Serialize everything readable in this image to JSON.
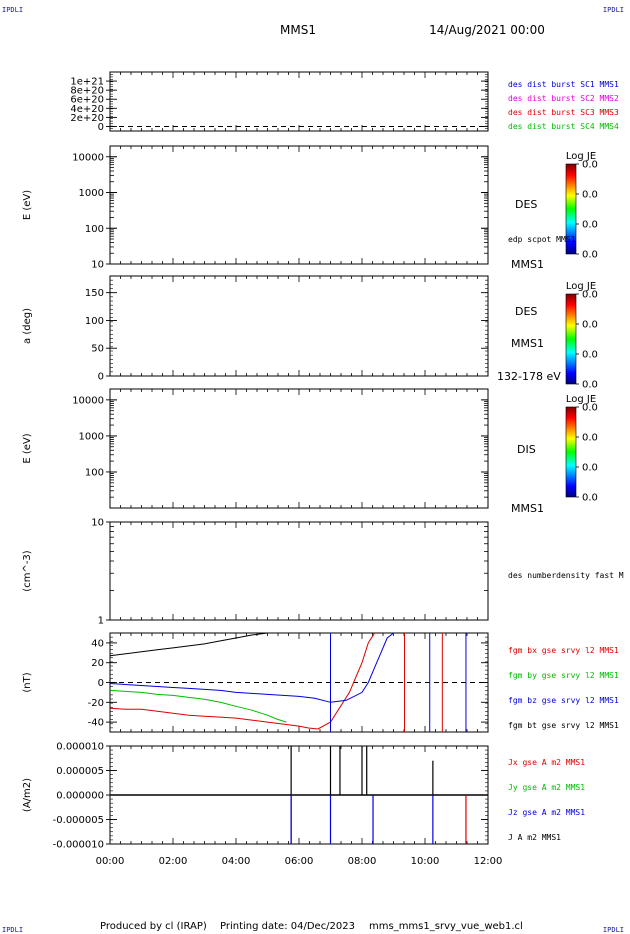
{
  "corners": {
    "top_left": "IPDLI",
    "top_right": "IPDLI",
    "bottom_left": "IPDLI",
    "bottom_right": "IPDLI"
  },
  "header": {
    "spacecraft": "MMS1",
    "datetime": "14/Aug/2021 00:00"
  },
  "footer": {
    "produced_by": "Produced by cl (IRAP)",
    "printing_date": "Printing date: 04/Dec/2023",
    "filename": "mms_mms1_srvy_vue_web1.cl"
  },
  "colors": {
    "blue": "#0000dd",
    "magenta": "#dd00dd",
    "red": "#dd0000",
    "green": "#00bb00",
    "black": "#000000"
  },
  "chart_data": [
    {
      "type": "line",
      "title": "",
      "ylabel": "",
      "ylim": [
        -1e+20,
        1.2e+21
      ],
      "yticks": [
        "0",
        "2e+20",
        "4e+20",
        "6e+20",
        "8e+20",
        "1e+21"
      ],
      "dashed_zero": true,
      "series": [
        {
          "name": "des dist burst SC1 MMS1",
          "color": "blue",
          "values": []
        },
        {
          "name": "des dist burst SC2 MMS2",
          "color": "magenta",
          "values": []
        },
        {
          "name": "des dist burst SC3 MMS3",
          "color": "red",
          "values": []
        },
        {
          "name": "des dist burst SC4 MMS4",
          "color": "green",
          "values": []
        }
      ]
    },
    {
      "type": "heatmap",
      "ylabel": "E (eV)",
      "scale": "log",
      "ylim": [
        10,
        20000
      ],
      "yticks": [
        "10",
        "100",
        "1000",
        "10000"
      ],
      "right_labels": [
        "DES",
        "edp scpot MMS1",
        "MMS1"
      ],
      "colorbar": {
        "title": "Log JE",
        "ticks": [
          "0.0",
          "0.0",
          "0.0",
          "0.0"
        ]
      }
    },
    {
      "type": "heatmap",
      "ylabel": "a (deg)",
      "ylim": [
        0,
        180
      ],
      "yticks": [
        "0",
        "50",
        "100",
        "150"
      ],
      "right_labels": [
        "DES",
        "MMS1",
        "132-178 eV"
      ],
      "colorbar": {
        "title": "Log JE",
        "ticks": [
          "0.0",
          "0.0",
          "0.0",
          "0.0"
        ]
      }
    },
    {
      "type": "heatmap",
      "ylabel": "E (eV)",
      "scale": "log",
      "ylim": [
        10,
        20000
      ],
      "yticks": [
        "100",
        "1000",
        "10000"
      ],
      "right_labels": [
        "DIS",
        "MMS1"
      ],
      "colorbar": {
        "title": "Log JE",
        "ticks": [
          "0.0",
          "0.0",
          "0.0",
          "0.0"
        ]
      }
    },
    {
      "type": "line",
      "ylabel": "(cm^-3)",
      "scale": "log",
      "ylim": [
        1,
        10
      ],
      "yticks": [
        "1",
        "10"
      ],
      "series": [
        {
          "name": "des numberdensity fast M",
          "color": "black",
          "values": []
        }
      ]
    },
    {
      "type": "line",
      "ylabel": "(nT)",
      "ylim": [
        -50,
        50
      ],
      "yticks": [
        "-40",
        "-20",
        "0",
        "20",
        "40"
      ],
      "dashed_zero": true,
      "series": [
        {
          "name": "fgm bx gse srvy l2 MMS1",
          "color": "red",
          "x": [
            0.0,
            0.5,
            1.0,
            1.5,
            2.0,
            2.5,
            3.0,
            3.5,
            4.0,
            4.5,
            5.0,
            5.5,
            6.0,
            6.3,
            6.6,
            7.0,
            7.2,
            7.4,
            7.6,
            7.8,
            8.0,
            8.2,
            8.4
          ],
          "y": [
            -26,
            -27,
            -27,
            -29,
            -31,
            -33,
            -34,
            -35,
            -36,
            -38,
            -40,
            -42,
            -44,
            -46,
            -47,
            -40,
            -30,
            -20,
            -10,
            5,
            20,
            40,
            50
          ]
        },
        {
          "name": "fgm by gse srvy l2 MMS1",
          "color": "green",
          "x": [
            0.0,
            0.5,
            1.0,
            1.5,
            2.0,
            2.5,
            3.0,
            3.5,
            4.0,
            4.5,
            5.0,
            5.3,
            5.6
          ],
          "y": [
            -8,
            -9,
            -10,
            -12,
            -13,
            -15,
            -17,
            -20,
            -24,
            -28,
            -33,
            -37,
            -40
          ]
        },
        {
          "name": "fgm bz gse srvy l2 MMS1",
          "color": "blue",
          "x": [
            0.0,
            0.5,
            1.0,
            1.5,
            2.0,
            2.5,
            3.0,
            3.5,
            4.0,
            4.5,
            5.0,
            5.5,
            6.0,
            6.5,
            7.0,
            7.5,
            8.0,
            8.2,
            8.4,
            8.6,
            8.8,
            9.0
          ],
          "y": [
            -1,
            -2,
            -3,
            -4,
            -5,
            -6,
            -7,
            -8,
            -10,
            -11,
            -12,
            -13,
            -14,
            -16,
            -20,
            -18,
            -10,
            0,
            15,
            30,
            45,
            50
          ]
        },
        {
          "name": "fgm bt gse srvy l2 MMS1",
          "color": "black",
          "x": [
            0.0,
            0.5,
            1.0,
            1.5,
            2.0,
            2.5,
            3.0,
            3.5,
            4.0,
            4.5,
            5.0
          ],
          "y": [
            27,
            29,
            31,
            33,
            35,
            37,
            39,
            42,
            45,
            48,
            50
          ]
        }
      ]
    },
    {
      "type": "line",
      "ylabel": "(A/m2)",
      "ylim": [
        -1e-05,
        1e-05
      ],
      "yticks": [
        "-0.000010",
        "-0.000005",
        "0.000000",
        "0.000005",
        "0.000010"
      ],
      "series": [
        {
          "name": "Jx gse A m2 MMS1",
          "color": "red",
          "values": []
        },
        {
          "name": "Jy gse A m2 MMS1",
          "color": "green",
          "values": []
        },
        {
          "name": "Jz gse A m2 MMS1",
          "color": "blue",
          "values": []
        },
        {
          "name": "J A m2 MMS1",
          "color": "black",
          "values": []
        }
      ]
    }
  ],
  "xaxis": {
    "range": [
      0,
      12
    ],
    "ticks": [
      "00:00",
      "02:00",
      "04:00",
      "06:00",
      "08:00",
      "10:00",
      "12:00"
    ]
  }
}
